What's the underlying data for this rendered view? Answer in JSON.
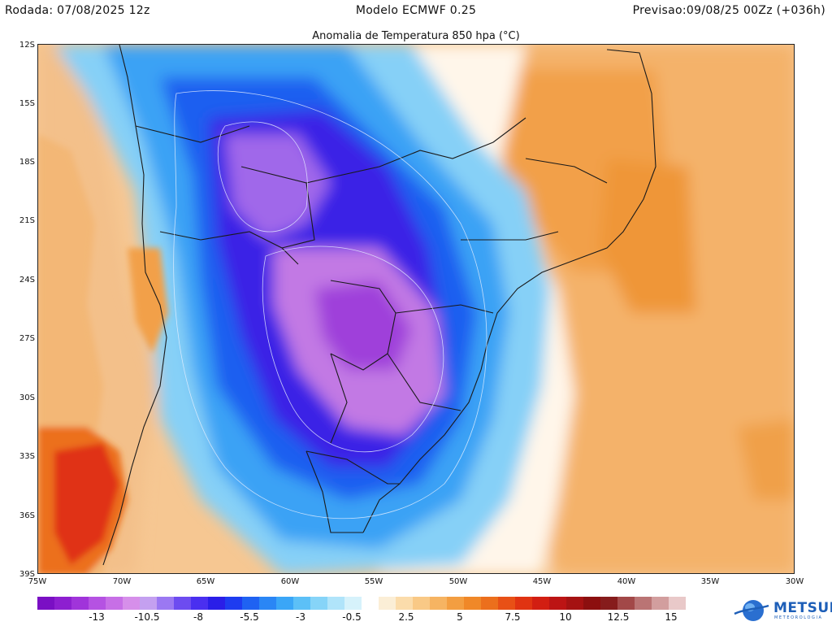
{
  "header": {
    "run": "Rodada: 07/08/2025 12z",
    "model": "Modelo ECMWF 0.25",
    "forecast": "Previsao:09/08/25 00Zz (+036h)"
  },
  "field_title": "Anomalia de Temperatura 850 hpa (°C)",
  "lat_labels": [
    "12S",
    "15S",
    "18S",
    "21S",
    "24S",
    "27S",
    "30S",
    "33S",
    "36S",
    "39S"
  ],
  "lon_labels": [
    "75W",
    "70W",
    "65W",
    "60W",
    "55W",
    "50W",
    "45W",
    "40W",
    "35W",
    "30W"
  ],
  "colorbar": {
    "colors": [
      "#7a0fc4",
      "#8d1fd0",
      "#a034da",
      "#b552e2",
      "#c76fe6",
      "#d68fea",
      "#c4a0f0",
      "#9b78f2",
      "#6d4cf0",
      "#4a2ff0",
      "#2a1ee8",
      "#1e3cf0",
      "#1f62f2",
      "#2a86f5",
      "#3aa6f7",
      "#5cc0f7",
      "#86d4f8",
      "#b0e4fa",
      "#d6f2fb",
      "#ffffff",
      "#fbeed6",
      "#fbdcab",
      "#f9c986",
      "#f6b462",
      "#f39e41",
      "#f08828",
      "#ec6f1c",
      "#e85016",
      "#e03312",
      "#d21e12",
      "#bc1414",
      "#a51212",
      "#8c0f0f",
      "#861c1c",
      "#a24848",
      "#ba7474",
      "#d29e9e",
      "#e9c9c9"
    ],
    "tick_labels": [
      "-13",
      "-10.5",
      "-8",
      "-5.5",
      "-3",
      "-0.5",
      "2.5",
      "5",
      "7.5",
      "10",
      "12.5",
      "15"
    ]
  },
  "logo": {
    "name": "METSUL",
    "tagline": "METEOROLOGIA"
  }
}
